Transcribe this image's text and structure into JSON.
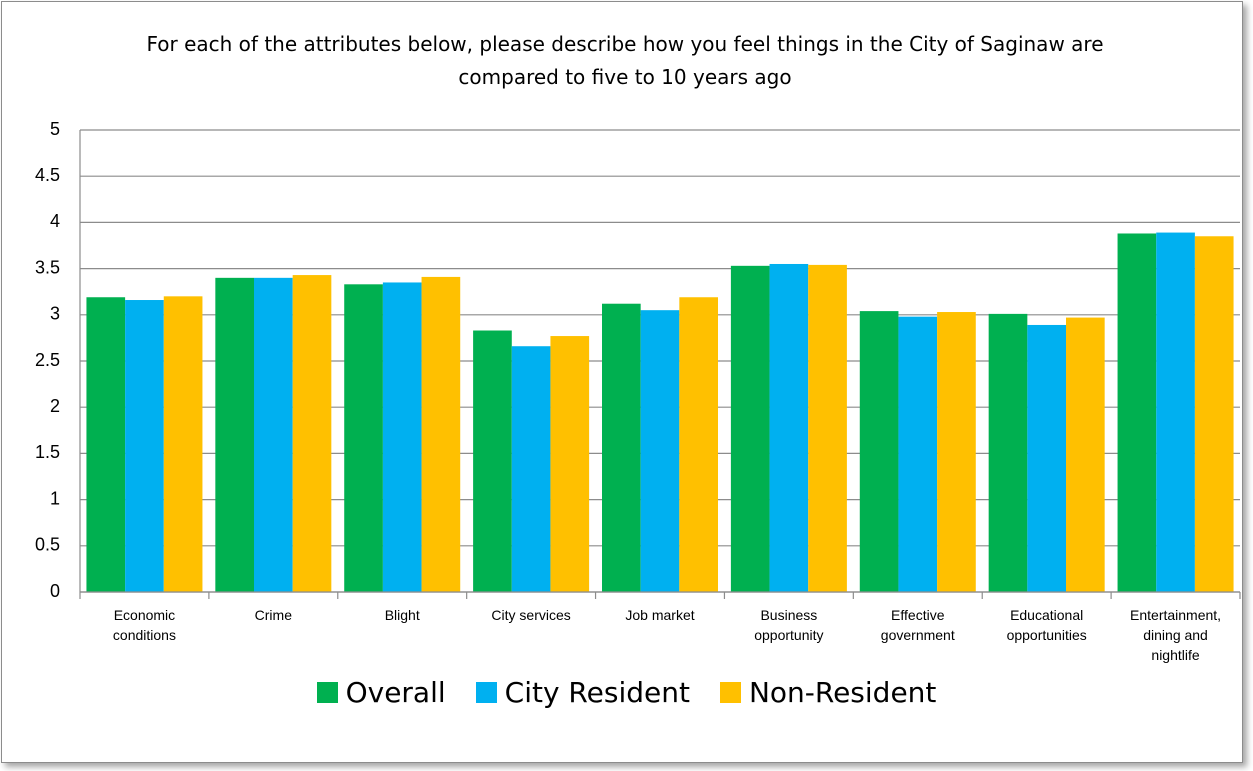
{
  "chart_data": {
    "type": "bar",
    "title": "For each of the attributes below, please describe how you feel things in the City of Saginaw are compared to five to 10 years ago",
    "categories": [
      "Economic conditions",
      "Crime",
      "Blight",
      "City services",
      "Job market",
      "Business opportunity",
      "Effective government",
      "Educational opportunities",
      "Entertainment, dining and nightlife"
    ],
    "series": [
      {
        "name": "Overall",
        "color": "#00b050",
        "values": [
          3.19,
          3.4,
          3.33,
          2.83,
          3.12,
          3.53,
          3.04,
          3.01,
          3.88
        ]
      },
      {
        "name": "City Resident",
        "color": "#00b0f0",
        "values": [
          3.16,
          3.4,
          3.35,
          2.66,
          3.05,
          3.55,
          2.98,
          2.89,
          3.89
        ]
      },
      {
        "name": "Non-Resident",
        "color": "#ffc000",
        "values": [
          3.2,
          3.43,
          3.41,
          2.77,
          3.19,
          3.54,
          3.03,
          2.97,
          3.85
        ]
      }
    ],
    "ylim": [
      0,
      5
    ],
    "yticks": [
      0,
      0.5,
      1,
      1.5,
      2,
      2.5,
      3,
      3.5,
      4,
      4.5,
      5
    ],
    "grid": true,
    "legend": "bottom"
  }
}
